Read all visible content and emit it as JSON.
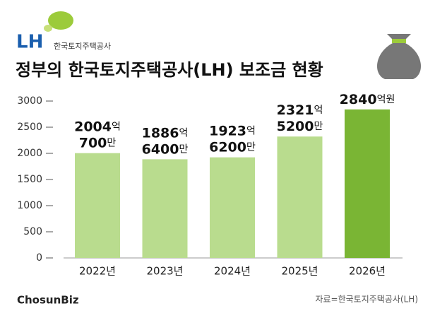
{
  "header": {
    "logo": "LH",
    "logo_sub": "한국토지주택공사"
  },
  "chart_data": {
    "type": "bar",
    "title": "정부의 한국토지주택공사(LH) 보조금 현황",
    "categories": [
      "2022년",
      "2023년",
      "2024년",
      "2025년",
      "2026년"
    ],
    "values": [
      2004.07,
      1886.64,
      1923.62,
      2321.52,
      2840
    ],
    "value_labels": [
      [
        "2004억",
        "700만"
      ],
      [
        "1886억",
        "6400만"
      ],
      [
        "1923억",
        "6200만"
      ],
      [
        "2321억",
        "5200만"
      ],
      [
        "2840억원"
      ]
    ],
    "colors": [
      "#b9dc8e",
      "#b9dc8e",
      "#b9dc8e",
      "#b9dc8e",
      "#7ab534"
    ],
    "ylim": [
      0,
      3000
    ],
    "yticks": [
      0,
      500,
      1000,
      1500,
      2000,
      2500,
      3000
    ],
    "grid": false
  },
  "footer": {
    "brand": "ChosunBiz",
    "source": "자료=한국토지주택공사(LH)"
  }
}
